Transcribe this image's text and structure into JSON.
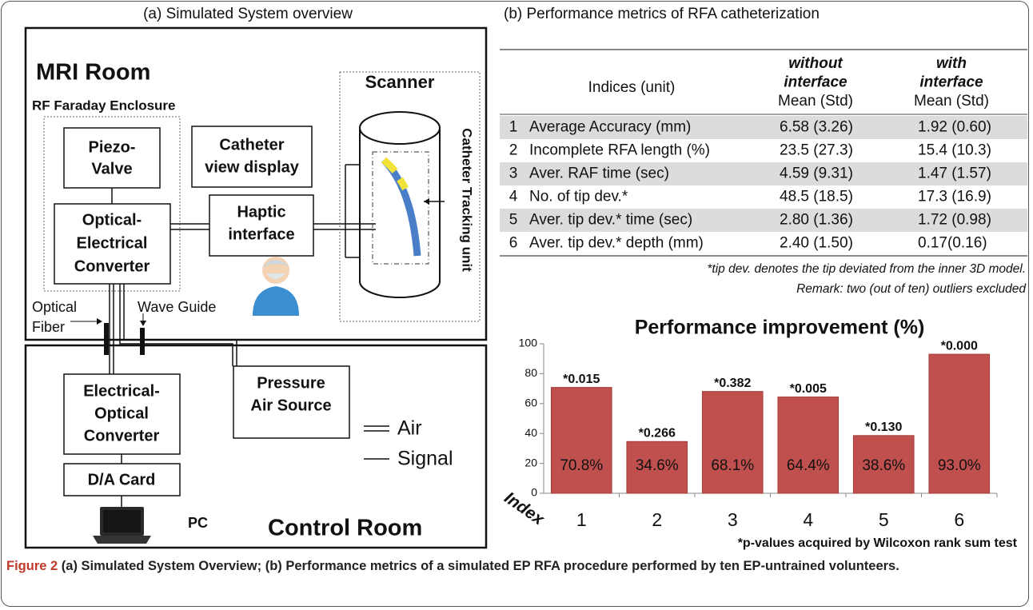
{
  "diagram": {
    "title": "(a) Simulated System overview",
    "mri_room": "MRI Room",
    "enclosure": "RF Faraday Enclosure",
    "scanner": "Scanner",
    "piezo_valve": [
      "Piezo-",
      "Valve"
    ],
    "catheter_display": [
      "Catheter",
      "view display"
    ],
    "oe_converter": [
      "Optical-",
      "Electrical",
      "Converter"
    ],
    "haptic": [
      "Haptic",
      "interface"
    ],
    "tracking_unit": "Catheter Tracking unit",
    "optical_fiber": [
      "Optical",
      "Fiber"
    ],
    "wave_guide": "Wave Guide",
    "eo_converter": [
      "Electrical-",
      "Optical",
      "Converter"
    ],
    "da_card": "D/A Card",
    "pc": "PC",
    "air_source": [
      "Pressure",
      "Air Source"
    ],
    "legend_air": "Air",
    "legend_signal": "Signal",
    "control_room": "Control Room"
  },
  "table": {
    "title": "(b) Performance metrics of RFA catheterization",
    "header": [
      "Indices (unit)",
      [
        "without",
        "interface",
        "Mean (Std)"
      ],
      [
        "with",
        "interface",
        "Mean (Std)"
      ]
    ],
    "rows": [
      [
        "1",
        "Average Accuracy (mm)",
        "6.58 (3.26)",
        "1.92 (0.60)"
      ],
      [
        "2",
        "Incomplete RFA length (%)",
        "23.5 (27.3)",
        "15.4 (10.3)"
      ],
      [
        "3",
        "Aver. RAF time (sec)",
        "4.59 (9.31)",
        "1.47 (1.57)"
      ],
      [
        "4",
        "No. of tip dev.*",
        "48.5 (18.5)",
        "17.3 (16.9)"
      ],
      [
        "5",
        "Aver. tip dev.* time (sec)",
        "2.80 (1.36)",
        "1.72 (0.98)"
      ],
      [
        "6",
        "Aver. tip dev.* depth (mm)",
        "2.40 (1.50)",
        "0.17(0.16)"
      ]
    ],
    "notes": [
      "*tip dev. denotes the tip deviated from the inner 3D model.",
      "Remark: two (out of ten) outliers excluded"
    ]
  },
  "chart_data": {
    "type": "bar",
    "title": "Performance improvement (%)",
    "x_label": "Index",
    "categories": [
      "1",
      "2",
      "3",
      "4",
      "5",
      "6"
    ],
    "values": [
      70.8,
      34.6,
      68.1,
      64.4,
      38.6,
      93.0
    ],
    "value_labels": [
      "70.8%",
      "34.6%",
      "68.1%",
      "64.4%",
      "38.6%",
      "93.0%"
    ],
    "annotations": [
      "*0.015",
      "*0.266",
      "*0.382",
      "*0.005",
      "*0.130",
      "*0.000"
    ],
    "note": "*p-values acquired by Wilcoxon rank sum test",
    "color": "#c0504d",
    "ylim": [
      0,
      100
    ],
    "yticks": [
      0,
      20,
      40,
      60,
      80,
      100
    ]
  },
  "caption": {
    "label": "Figure 2",
    "text": "(a) Simulated System Overview; (b) Performance metrics of a simulated EP RFA procedure performed by ten EP-untrained volunteers."
  }
}
